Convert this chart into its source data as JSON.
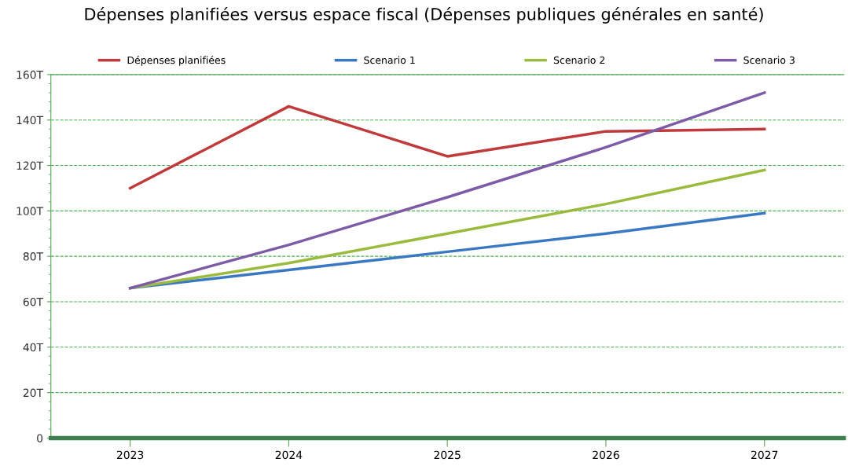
{
  "chart_data": {
    "type": "line",
    "title": "Dépenses planifiées versus espace fiscal (Dépenses publiques générales en santé)",
    "categories": [
      "2023",
      "2024",
      "2025",
      "2026",
      "2027"
    ],
    "series": [
      {
        "name": "Dépenses planifiées",
        "color": "#c0393b",
        "values": [
          110,
          146,
          124,
          135,
          136
        ]
      },
      {
        "name": "Scenario 1",
        "color": "#3a78c4",
        "values": [
          66,
          74,
          82,
          90,
          99
        ]
      },
      {
        "name": "Scenario 2",
        "color": "#9bbb3f",
        "values": [
          66,
          77,
          90,
          103,
          118
        ]
      },
      {
        "name": "Scenario 3",
        "color": "#7d5ba6",
        "values": [
          66,
          85,
          106,
          128,
          152
        ]
      }
    ],
    "ylim": [
      0,
      160
    ],
    "yticks": [
      0,
      {
        "value": 20,
        "label": "20T"
      },
      {
        "value": 40,
        "label": "40T"
      },
      {
        "value": 60,
        "label": "60T"
      },
      {
        "value": 80,
        "label": "80T"
      },
      {
        "value": 100,
        "label": "100T"
      },
      {
        "value": 120,
        "label": "120T"
      },
      {
        "value": 140,
        "label": "140T"
      },
      {
        "value": 160,
        "label": "160T"
      }
    ],
    "grid": "y",
    "legend": "top",
    "marker": "none",
    "line_style": "solid"
  }
}
